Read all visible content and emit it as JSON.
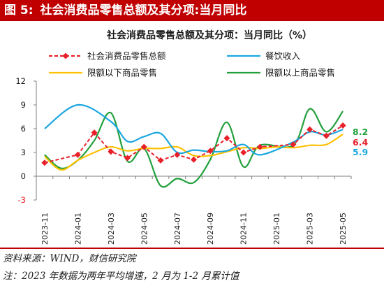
{
  "figure": {
    "label": "图 5:",
    "title": "社会消费品零售总额及其分项:当月同比"
  },
  "source": "资料来源：WIND，财信研究院",
  "note": "注：2023 年数据为两年平均增速，2 月为 1-2 月累计值",
  "chart_data": {
    "type": "line",
    "title": "社会消费品零售总额及其分项：当月同比（%）",
    "ylim": [
      -3,
      12
    ],
    "yticks": [
      -3,
      0,
      3,
      6,
      9,
      12
    ],
    "x": [
      "2023-11",
      "2023-12",
      "2024-01",
      "2024-02",
      "2024-03",
      "2024-04",
      "2024-05",
      "2024-06",
      "2024-07",
      "2024-08",
      "2024-09",
      "2024-10",
      "2024-11",
      "2024-12",
      "2025-01",
      "2025-02",
      "2025-03",
      "2025-04",
      "2025-05"
    ],
    "xtick_labels": [
      "2023-11",
      "2024-01",
      "2024-03",
      "2024-05",
      "2024-07",
      "2024-09",
      "2024-11",
      "2025-01",
      "2025-03",
      "2025-05"
    ],
    "legend_position": "top",
    "grid": false,
    "series": [
      {
        "name": "社会消费品零售总额",
        "color": "#e8202a",
        "style": "dashed-diamond",
        "values": [
          1.7,
          null,
          2.7,
          5.5,
          3.1,
          2.3,
          3.7,
          2.0,
          2.7,
          2.1,
          3.2,
          4.8,
          3.0,
          3.7,
          null,
          4.0,
          5.9,
          5.1,
          6.4
        ]
      },
      {
        "name": "餐饮收入",
        "color": "#1ca7e0",
        "style": "smooth",
        "values": [
          6.0,
          null,
          9.0,
          null,
          6.9,
          4.4,
          5.0,
          5.4,
          3.0,
          3.3,
          3.1,
          3.2,
          4.0,
          2.7,
          null,
          4.3,
          5.6,
          5.2,
          5.9
        ]
      },
      {
        "name": "限额以下商品零售",
        "color": "#ffc000",
        "style": "smooth",
        "values": [
          2.5,
          0.8,
          2.0,
          3.0,
          3.7,
          3.2,
          3.5,
          3.5,
          3.7,
          2.6,
          2.6,
          3.1,
          3.6,
          3.5,
          3.7,
          3.6,
          3.9,
          4.0,
          5.3
        ]
      },
      {
        "name": "限额以上商品零售",
        "color": "#22a03c",
        "style": "smooth",
        "values": [
          2.7,
          1.0,
          2.0,
          4.5,
          8.0,
          1.9,
          3.5,
          -1.2,
          -0.3,
          -0.8,
          2.1,
          6.8,
          1.2,
          3.9,
          null,
          3.9,
          8.5,
          5.6,
          8.2
        ]
      }
    ],
    "end_labels": [
      {
        "series": 3,
        "text": "8.2",
        "color": "#22a03c"
      },
      {
        "series": 0,
        "text": "6.4",
        "color": "#e8202a"
      },
      {
        "series": 1,
        "text": "5.9",
        "color": "#1ca7e0"
      }
    ]
  }
}
